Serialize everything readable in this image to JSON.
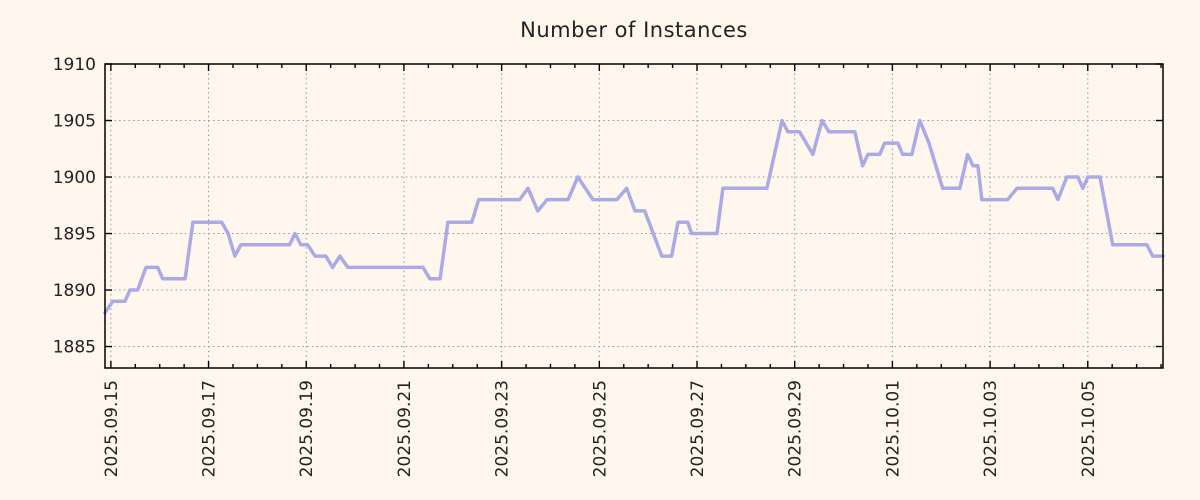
{
  "page": {
    "background_color": "#fff7ee"
  },
  "chart_data": {
    "type": "line",
    "title": "Number of Instances",
    "grid": true,
    "legend": "none",
    "line_color": "#aaaae6",
    "grid_color": "#969696",
    "axis_color": "#000000",
    "text_color": "#222222",
    "x_axis": {
      "unit": "days_since_first_tick",
      "tick_labels": [
        "2025.09.15",
        "2025.09.17",
        "2025.09.19",
        "2025.09.21",
        "2025.09.23",
        "2025.09.25",
        "2025.09.27",
        "2025.09.29",
        "2025.10.01",
        "2025.10.03",
        "2025.10.05"
      ],
      "tick_positions_days": [
        0,
        2,
        4,
        6,
        8,
        10,
        12,
        14,
        16,
        18,
        20
      ],
      "minor_tick_step_days": 0.5,
      "lim_days": [
        -0.12,
        21.54
      ]
    },
    "y_axis": {
      "ticks": [
        1885,
        1890,
        1895,
        1900,
        1905,
        1910
      ],
      "lim": [
        1883.1,
        1910
      ]
    },
    "series": [
      {
        "name": "instances",
        "points": [
          [
            -0.12,
            1888
          ],
          [
            0.04,
            1889
          ],
          [
            0.29,
            1889
          ],
          [
            0.39,
            1890
          ],
          [
            0.55,
            1890
          ],
          [
            0.72,
            1892
          ],
          [
            0.96,
            1892
          ],
          [
            1.06,
            1891
          ],
          [
            1.52,
            1891
          ],
          [
            1.68,
            1896
          ],
          [
            2.27,
            1896
          ],
          [
            2.4,
            1895
          ],
          [
            2.54,
            1893
          ],
          [
            2.66,
            1894
          ],
          [
            3.66,
            1894
          ],
          [
            3.77,
            1895
          ],
          [
            3.89,
            1894
          ],
          [
            4.03,
            1894
          ],
          [
            4.18,
            1893
          ],
          [
            4.4,
            1893
          ],
          [
            4.54,
            1892
          ],
          [
            4.69,
            1893
          ],
          [
            4.85,
            1892
          ],
          [
            6.39,
            1892
          ],
          [
            6.53,
            1891
          ],
          [
            6.74,
            1891
          ],
          [
            6.9,
            1896
          ],
          [
            7.39,
            1896
          ],
          [
            7.53,
            1898
          ],
          [
            8.37,
            1898
          ],
          [
            8.54,
            1899
          ],
          [
            8.74,
            1897
          ],
          [
            8.93,
            1898
          ],
          [
            9.36,
            1898
          ],
          [
            9.56,
            1900
          ],
          [
            9.87,
            1898
          ],
          [
            10.36,
            1898
          ],
          [
            10.56,
            1899
          ],
          [
            10.73,
            1897
          ],
          [
            10.93,
            1897
          ],
          [
            11.28,
            1893
          ],
          [
            11.48,
            1893
          ],
          [
            11.61,
            1896
          ],
          [
            11.81,
            1896
          ],
          [
            11.89,
            1895
          ],
          [
            12.41,
            1895
          ],
          [
            12.53,
            1899
          ],
          [
            13.43,
            1899
          ],
          [
            13.74,
            1905
          ],
          [
            13.86,
            1904
          ],
          [
            14.1,
            1904
          ],
          [
            14.37,
            1902
          ],
          [
            14.56,
            1905
          ],
          [
            14.7,
            1904
          ],
          [
            15.23,
            1904
          ],
          [
            15.39,
            1901
          ],
          [
            15.5,
            1902
          ],
          [
            15.74,
            1902
          ],
          [
            15.84,
            1903
          ],
          [
            16.11,
            1903
          ],
          [
            16.21,
            1902
          ],
          [
            16.4,
            1902
          ],
          [
            16.56,
            1905
          ],
          [
            16.75,
            1903
          ],
          [
            17.03,
            1899
          ],
          [
            17.38,
            1899
          ],
          [
            17.54,
            1902
          ],
          [
            17.65,
            1901
          ],
          [
            17.75,
            1901
          ],
          [
            17.83,
            1898
          ],
          [
            18.36,
            1898
          ],
          [
            18.55,
            1899
          ],
          [
            19.28,
            1899
          ],
          [
            19.39,
            1898
          ],
          [
            19.57,
            1900
          ],
          [
            19.8,
            1900
          ],
          [
            19.9,
            1899
          ],
          [
            20.0,
            1900
          ],
          [
            20.25,
            1900
          ],
          [
            20.51,
            1894
          ],
          [
            21.21,
            1894
          ],
          [
            21.33,
            1893
          ],
          [
            21.54,
            1893
          ]
        ]
      }
    ]
  }
}
